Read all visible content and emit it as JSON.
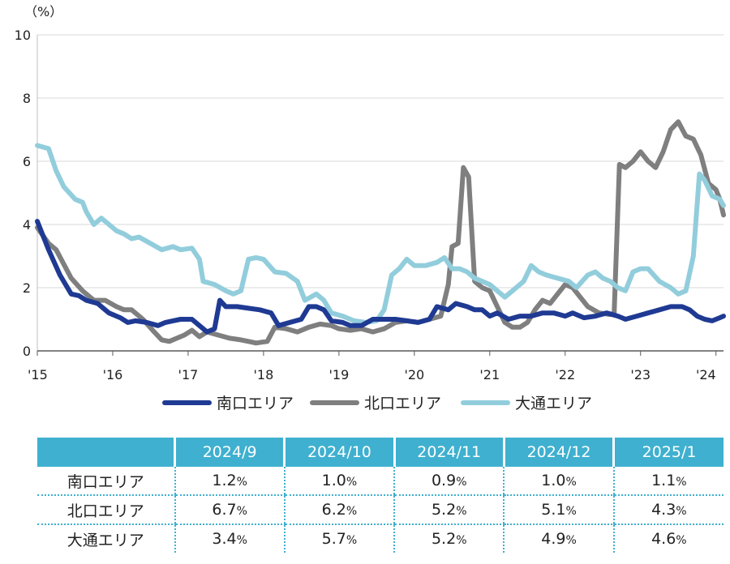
{
  "chart_data": {
    "type": "line",
    "y_unit_label": "（%）",
    "ylim": [
      0,
      10
    ],
    "y_ticks": [
      0,
      2,
      4,
      6,
      8,
      10
    ],
    "x_tick_labels": [
      "'15",
      "'16",
      "'17",
      "'18",
      "'19",
      "'20",
      "'21",
      "'22",
      "'23",
      "'24"
    ],
    "x_range_years": [
      2015.0,
      2024.1
    ],
    "grid": true,
    "legend_position": "bottom",
    "series": [
      {
        "name": "南口エリア",
        "color": "#1f3a93",
        "points": [
          [
            2015.0,
            4.1
          ],
          [
            2015.15,
            3.2
          ],
          [
            2015.3,
            2.4
          ],
          [
            2015.45,
            1.8
          ],
          [
            2015.55,
            1.75
          ],
          [
            2015.65,
            1.6
          ],
          [
            2015.8,
            1.5
          ],
          [
            2015.95,
            1.2
          ],
          [
            2016.1,
            1.05
          ],
          [
            2016.2,
            0.9
          ],
          [
            2016.3,
            0.95
          ],
          [
            2016.45,
            0.9
          ],
          [
            2016.6,
            0.8
          ],
          [
            2016.7,
            0.9
          ],
          [
            2016.8,
            0.95
          ],
          [
            2016.9,
            1.0
          ],
          [
            2017.05,
            1.0
          ],
          [
            2017.15,
            0.8
          ],
          [
            2017.25,
            0.6
          ],
          [
            2017.35,
            0.7
          ],
          [
            2017.42,
            1.6
          ],
          [
            2017.5,
            1.4
          ],
          [
            2017.65,
            1.4
          ],
          [
            2017.8,
            1.35
          ],
          [
            2017.95,
            1.3
          ],
          [
            2018.1,
            1.2
          ],
          [
            2018.2,
            0.8
          ],
          [
            2018.35,
            0.9
          ],
          [
            2018.5,
            1.0
          ],
          [
            2018.6,
            1.4
          ],
          [
            2018.7,
            1.4
          ],
          [
            2018.8,
            1.3
          ],
          [
            2018.9,
            0.95
          ],
          [
            2019.05,
            0.9
          ],
          [
            2019.15,
            0.8
          ],
          [
            2019.3,
            0.8
          ],
          [
            2019.45,
            1.0
          ],
          [
            2019.6,
            1.0
          ],
          [
            2019.75,
            1.0
          ],
          [
            2019.9,
            0.95
          ],
          [
            2020.05,
            0.9
          ],
          [
            2020.2,
            1.0
          ],
          [
            2020.3,
            1.4
          ],
          [
            2020.45,
            1.3
          ],
          [
            2020.55,
            1.5
          ],
          [
            2020.7,
            1.4
          ],
          [
            2020.8,
            1.3
          ],
          [
            2020.9,
            1.3
          ],
          [
            2021.0,
            1.1
          ],
          [
            2021.1,
            1.2
          ],
          [
            2021.25,
            1.0
          ],
          [
            2021.4,
            1.1
          ],
          [
            2021.55,
            1.1
          ],
          [
            2021.7,
            1.2
          ],
          [
            2021.85,
            1.2
          ],
          [
            2022.0,
            1.1
          ],
          [
            2022.1,
            1.2
          ],
          [
            2022.25,
            1.05
          ],
          [
            2022.4,
            1.1
          ],
          [
            2022.55,
            1.2
          ],
          [
            2022.7,
            1.1
          ],
          [
            2022.8,
            1.0
          ],
          [
            2022.95,
            1.1
          ],
          [
            2023.1,
            1.2
          ],
          [
            2023.25,
            1.3
          ],
          [
            2023.4,
            1.4
          ],
          [
            2023.55,
            1.4
          ],
          [
            2023.65,
            1.3
          ],
          [
            2023.75,
            1.1
          ],
          [
            2023.85,
            1.0
          ],
          [
            2023.95,
            0.95
          ],
          [
            2024.05,
            1.05
          ],
          [
            2024.1,
            1.1
          ]
        ]
      },
      {
        "name": "北口エリア",
        "color": "#7f7f7f",
        "points": [
          [
            2015.0,
            3.9
          ],
          [
            2015.15,
            3.4
          ],
          [
            2015.25,
            3.2
          ],
          [
            2015.45,
            2.3
          ],
          [
            2015.6,
            1.9
          ],
          [
            2015.75,
            1.6
          ],
          [
            2015.9,
            1.6
          ],
          [
            2016.05,
            1.4
          ],
          [
            2016.15,
            1.3
          ],
          [
            2016.25,
            1.3
          ],
          [
            2016.4,
            1.0
          ],
          [
            2016.55,
            0.6
          ],
          [
            2016.65,
            0.35
          ],
          [
            2016.75,
            0.3
          ],
          [
            2016.85,
            0.4
          ],
          [
            2016.95,
            0.5
          ],
          [
            2017.05,
            0.65
          ],
          [
            2017.15,
            0.45
          ],
          [
            2017.25,
            0.6
          ],
          [
            2017.4,
            0.5
          ],
          [
            2017.55,
            0.4
          ],
          [
            2017.7,
            0.35
          ],
          [
            2017.8,
            0.3
          ],
          [
            2017.9,
            0.25
          ],
          [
            2018.05,
            0.3
          ],
          [
            2018.15,
            0.75
          ],
          [
            2018.3,
            0.7
          ],
          [
            2018.45,
            0.6
          ],
          [
            2018.6,
            0.75
          ],
          [
            2018.75,
            0.85
          ],
          [
            2018.9,
            0.8
          ],
          [
            2019.0,
            0.7
          ],
          [
            2019.15,
            0.65
          ],
          [
            2019.3,
            0.7
          ],
          [
            2019.45,
            0.6
          ],
          [
            2019.6,
            0.7
          ],
          [
            2019.75,
            0.9
          ],
          [
            2019.9,
            0.95
          ],
          [
            2020.05,
            0.9
          ],
          [
            2020.2,
            1.0
          ],
          [
            2020.35,
            1.1
          ],
          [
            2020.45,
            2.1
          ],
          [
            2020.5,
            3.3
          ],
          [
            2020.58,
            3.4
          ],
          [
            2020.65,
            5.8
          ],
          [
            2020.72,
            5.5
          ],
          [
            2020.8,
            2.2
          ],
          [
            2020.9,
            2.0
          ],
          [
            2021.0,
            1.9
          ],
          [
            2021.1,
            1.4
          ],
          [
            2021.2,
            0.9
          ],
          [
            2021.3,
            0.75
          ],
          [
            2021.4,
            0.75
          ],
          [
            2021.5,
            0.9
          ],
          [
            2021.6,
            1.3
          ],
          [
            2021.7,
            1.6
          ],
          [
            2021.8,
            1.5
          ],
          [
            2021.9,
            1.8
          ],
          [
            2022.0,
            2.1
          ],
          [
            2022.1,
            2.0
          ],
          [
            2022.2,
            1.7
          ],
          [
            2022.3,
            1.4
          ],
          [
            2022.45,
            1.2
          ],
          [
            2022.6,
            1.15
          ],
          [
            2022.65,
            1.2
          ],
          [
            2022.72,
            5.9
          ],
          [
            2022.8,
            5.8
          ],
          [
            2022.9,
            6.0
          ],
          [
            2023.0,
            6.3
          ],
          [
            2023.1,
            6.0
          ],
          [
            2023.2,
            5.8
          ],
          [
            2023.3,
            6.3
          ],
          [
            2023.4,
            7.0
          ],
          [
            2023.5,
            7.25
          ],
          [
            2023.6,
            6.8
          ],
          [
            2023.7,
            6.7
          ],
          [
            2023.8,
            6.2
          ],
          [
            2023.9,
            5.3
          ],
          [
            2024.0,
            5.1
          ],
          [
            2024.05,
            4.8
          ],
          [
            2024.1,
            4.3
          ]
        ]
      },
      {
        "name": "大通エリア",
        "color": "#92cddc",
        "points": [
          [
            2015.0,
            6.5
          ],
          [
            2015.15,
            6.4
          ],
          [
            2015.25,
            5.7
          ],
          [
            2015.35,
            5.2
          ],
          [
            2015.5,
            4.8
          ],
          [
            2015.6,
            4.7
          ],
          [
            2015.65,
            4.4
          ],
          [
            2015.75,
            4.0
          ],
          [
            2015.85,
            4.2
          ],
          [
            2015.95,
            4.0
          ],
          [
            2016.05,
            3.8
          ],
          [
            2016.15,
            3.7
          ],
          [
            2016.25,
            3.55
          ],
          [
            2016.35,
            3.6
          ],
          [
            2016.5,
            3.4
          ],
          [
            2016.65,
            3.2
          ],
          [
            2016.8,
            3.3
          ],
          [
            2016.9,
            3.2
          ],
          [
            2017.05,
            3.25
          ],
          [
            2017.15,
            2.9
          ],
          [
            2017.2,
            2.2
          ],
          [
            2017.35,
            2.1
          ],
          [
            2017.5,
            1.9
          ],
          [
            2017.6,
            1.8
          ],
          [
            2017.7,
            1.9
          ],
          [
            2017.8,
            2.9
          ],
          [
            2017.9,
            2.95
          ],
          [
            2018.0,
            2.9
          ],
          [
            2018.15,
            2.5
          ],
          [
            2018.3,
            2.45
          ],
          [
            2018.45,
            2.2
          ],
          [
            2018.55,
            1.6
          ],
          [
            2018.7,
            1.8
          ],
          [
            2018.8,
            1.6
          ],
          [
            2018.9,
            1.2
          ],
          [
            2019.05,
            1.1
          ],
          [
            2019.2,
            0.95
          ],
          [
            2019.35,
            0.9
          ],
          [
            2019.5,
            0.95
          ],
          [
            2019.6,
            1.3
          ],
          [
            2019.7,
            2.4
          ],
          [
            2019.8,
            2.6
          ],
          [
            2019.9,
            2.9
          ],
          [
            2020.0,
            2.7
          ],
          [
            2020.15,
            2.7
          ],
          [
            2020.3,
            2.8
          ],
          [
            2020.4,
            2.95
          ],
          [
            2020.5,
            2.6
          ],
          [
            2020.6,
            2.6
          ],
          [
            2020.7,
            2.5
          ],
          [
            2020.8,
            2.3
          ],
          [
            2020.9,
            2.2
          ],
          [
            2021.0,
            2.1
          ],
          [
            2021.1,
            1.9
          ],
          [
            2021.2,
            1.7
          ],
          [
            2021.3,
            1.9
          ],
          [
            2021.45,
            2.2
          ],
          [
            2021.55,
            2.7
          ],
          [
            2021.65,
            2.5
          ],
          [
            2021.75,
            2.4
          ],
          [
            2021.9,
            2.3
          ],
          [
            2022.05,
            2.2
          ],
          [
            2022.15,
            2.0
          ],
          [
            2022.3,
            2.4
          ],
          [
            2022.4,
            2.5
          ],
          [
            2022.5,
            2.3
          ],
          [
            2022.6,
            2.2
          ],
          [
            2022.7,
            2.0
          ],
          [
            2022.8,
            1.9
          ],
          [
            2022.9,
            2.5
          ],
          [
            2023.0,
            2.6
          ],
          [
            2023.1,
            2.6
          ],
          [
            2023.25,
            2.2
          ],
          [
            2023.4,
            2.0
          ],
          [
            2023.5,
            1.8
          ],
          [
            2023.6,
            1.9
          ],
          [
            2023.7,
            3.0
          ],
          [
            2023.78,
            5.6
          ],
          [
            2023.85,
            5.4
          ],
          [
            2023.95,
            4.9
          ],
          [
            2024.05,
            4.8
          ],
          [
            2024.1,
            4.6
          ]
        ]
      }
    ],
    "legend": [
      "南口エリア",
      "北口エリア",
      "大通エリア"
    ]
  },
  "table": {
    "headers": [
      "",
      "2024/9",
      "2024/10",
      "2024/11",
      "2024/12",
      "2025/1"
    ],
    "rows": [
      {
        "label": "南口エリア",
        "values": [
          "1.2",
          "1.0",
          "0.9",
          "1.0",
          "1.1"
        ]
      },
      {
        "label": "北口エリア",
        "values": [
          "6.7",
          "6.2",
          "5.2",
          "5.1",
          "4.3"
        ]
      },
      {
        "label": "大通エリア",
        "values": [
          "3.4",
          "5.7",
          "5.2",
          "4.9",
          "4.6"
        ]
      }
    ],
    "unit": "%"
  }
}
